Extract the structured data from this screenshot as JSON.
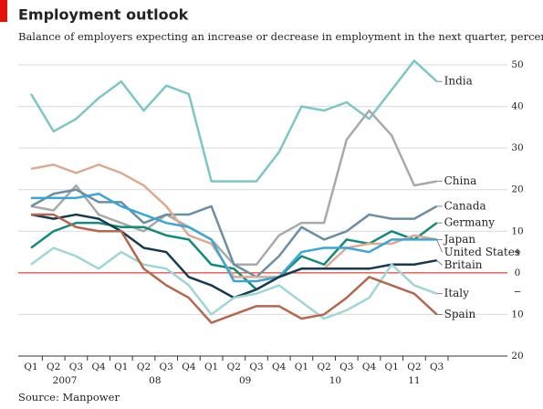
{
  "chart_data": {
    "type": "line",
    "title": "Employment outlook",
    "subtitle": "Balance of employers expecting an increase or decrease in employment in the next quarter, percentage points",
    "source": "Source: Manpower",
    "categories": [
      "Q1",
      "Q2",
      "Q3",
      "Q4",
      "Q1",
      "Q2",
      "Q3",
      "Q4",
      "Q1",
      "Q2",
      "Q3",
      "Q4",
      "Q1",
      "Q2",
      "Q3",
      "Q4",
      "Q1",
      "Q2",
      "Q3"
    ],
    "years": [
      "2007",
      "08",
      "09",
      "10",
      "11"
    ],
    "sign_labels": [
      "+",
      "−"
    ],
    "ylim": [
      -20,
      50
    ],
    "yticks": [
      50,
      40,
      30,
      20,
      10,
      0,
      {
        "value": -10,
        "label": "10"
      },
      {
        "value": -20,
        "label": "20"
      }
    ],
    "grid": true,
    "series": [
      {
        "name": "India",
        "color": "#7cc7c6",
        "values": [
          43,
          34,
          37,
          42,
          46,
          39,
          45,
          43,
          22,
          22,
          22,
          29,
          40,
          39,
          41,
          37,
          44,
          51,
          46
        ]
      },
      {
        "name": "China",
        "color": "#a9a9a9",
        "values": [
          16,
          15,
          21,
          14,
          12,
          10,
          14,
          11,
          8,
          2,
          2,
          9,
          12,
          12,
          32,
          39,
          33,
          21,
          22
        ]
      },
      {
        "name": "Canada",
        "color": "#6a8ea3",
        "values": [
          16,
          19,
          20,
          17,
          17,
          12,
          14,
          14,
          16,
          2,
          -1,
          4,
          11,
          8,
          10,
          14,
          13,
          13,
          16
        ]
      },
      {
        "name": "Germany",
        "color": "#138a7a",
        "values": [
          6,
          10,
          12,
          12,
          11,
          11,
          9,
          8,
          2,
          1,
          -4,
          -1,
          4,
          2,
          8,
          7,
          10,
          8,
          12
        ]
      },
      {
        "name": "Japan",
        "color": "#dcaa90",
        "values": [
          25,
          26,
          24,
          26,
          24,
          21,
          16,
          9,
          7,
          -1,
          -1,
          -1,
          1,
          1,
          6,
          7,
          7,
          9,
          8
        ]
      },
      {
        "name": "United States",
        "color": "#3aa6d8",
        "values": [
          18,
          18,
          18,
          19,
          16,
          14,
          12,
          11,
          8,
          -2,
          -2,
          -1,
          5,
          6,
          6,
          5,
          8,
          8,
          8
        ]
      },
      {
        "name": "Britain",
        "color": "#173a4e",
        "values": [
          14,
          13,
          14,
          13,
          10,
          6,
          5,
          -1,
          -3,
          -6,
          -4,
          -1,
          1,
          1,
          1,
          1,
          2,
          2,
          3
        ]
      },
      {
        "name": "Italy",
        "color": "#9fd6d5",
        "values": [
          2,
          6,
          4,
          1,
          5,
          2,
          1,
          -3,
          -10,
          -6,
          -5,
          -3,
          -7,
          -11,
          -9,
          -6,
          2,
          -3,
          -5
        ]
      },
      {
        "name": "Spain",
        "color": "#b5674e",
        "values": [
          14,
          14,
          11,
          10,
          10,
          1,
          -3,
          -6,
          -12,
          -10,
          -8,
          -8,
          -11,
          -10,
          -6,
          -1,
          -3,
          -5,
          -10
        ]
      }
    ]
  }
}
